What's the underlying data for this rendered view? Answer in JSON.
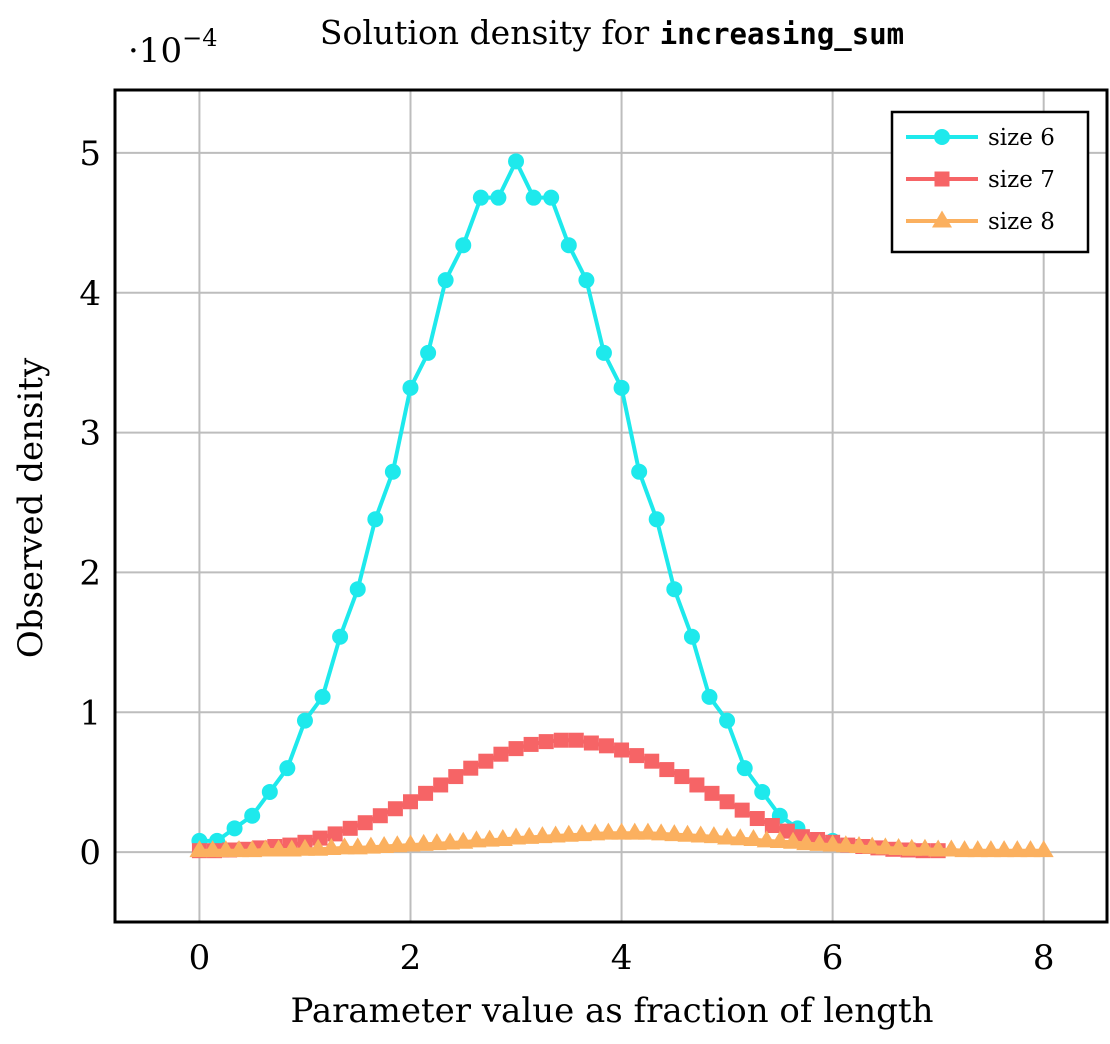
{
  "chart_data": {
    "type": "line",
    "title_prefix": "Solution density for ",
    "title_code": "increasing_sum",
    "xlabel": "Parameter value as fraction of length",
    "ylabel": "Observed density",
    "y_multiplier": "·10",
    "y_multiplier_exp": "−4",
    "xlim": [
      -0.8,
      8.6
    ],
    "ylim": [
      -0.5,
      5.45
    ],
    "x_ticks": [
      0,
      2,
      4,
      6,
      8
    ],
    "y_ticks": [
      0,
      1,
      2,
      3,
      4,
      5
    ],
    "grid": true,
    "legend_position": "top-right",
    "series": [
      {
        "name": "size 6",
        "color": "#1ee9ec",
        "marker": "circle",
        "x": [
          0,
          0.167,
          0.333,
          0.5,
          0.667,
          0.833,
          1.0,
          1.167,
          1.333,
          1.5,
          1.667,
          1.833,
          2.0,
          2.167,
          2.333,
          2.5,
          2.667,
          2.833,
          3.0,
          3.167,
          3.333,
          3.5,
          3.667,
          3.833,
          4.0,
          4.167,
          4.333,
          4.5,
          4.667,
          4.833,
          5.0,
          5.167,
          5.333,
          5.5,
          5.667,
          5.833,
          6.0
        ],
        "y": [
          0.08,
          0.08,
          0.17,
          0.26,
          0.43,
          0.6,
          0.94,
          1.11,
          1.54,
          1.88,
          2.38,
          2.72,
          3.32,
          3.57,
          4.09,
          4.34,
          4.68,
          4.68,
          4.94,
          4.68,
          4.68,
          4.34,
          4.09,
          3.57,
          3.32,
          2.72,
          2.38,
          1.88,
          1.54,
          1.11,
          0.94,
          0.6,
          0.43,
          0.26,
          0.17,
          0.08,
          0.08
        ]
      },
      {
        "name": "size 7",
        "color": "#f66466",
        "marker": "square",
        "x": [
          0,
          0.143,
          0.286,
          0.429,
          0.571,
          0.714,
          0.857,
          1.0,
          1.143,
          1.286,
          1.429,
          1.571,
          1.714,
          1.857,
          2.0,
          2.143,
          2.286,
          2.429,
          2.571,
          2.714,
          2.857,
          3.0,
          3.143,
          3.286,
          3.429,
          3.571,
          3.714,
          3.857,
          4.0,
          4.143,
          4.286,
          4.429,
          4.571,
          4.714,
          4.857,
          5.0,
          5.143,
          5.286,
          5.429,
          5.571,
          5.714,
          5.857,
          6.0,
          6.143,
          6.286,
          6.429,
          6.571,
          6.714,
          6.857,
          7.0
        ],
        "y": [
          0.01,
          0.01,
          0.015,
          0.02,
          0.03,
          0.04,
          0.05,
          0.07,
          0.1,
          0.13,
          0.17,
          0.21,
          0.26,
          0.31,
          0.36,
          0.42,
          0.48,
          0.54,
          0.6,
          0.65,
          0.7,
          0.74,
          0.77,
          0.79,
          0.8,
          0.8,
          0.78,
          0.76,
          0.73,
          0.69,
          0.65,
          0.59,
          0.54,
          0.48,
          0.42,
          0.36,
          0.3,
          0.24,
          0.19,
          0.15,
          0.11,
          0.09,
          0.07,
          0.05,
          0.04,
          0.03,
          0.02,
          0.015,
          0.01,
          0.01
        ]
      },
      {
        "name": "size 8",
        "color": "#fbb05f",
        "marker": "triangle",
        "x": [
          0,
          0.125,
          0.25,
          0.375,
          0.5,
          0.625,
          0.75,
          0.875,
          1.0,
          1.125,
          1.25,
          1.375,
          1.5,
          1.625,
          1.75,
          1.875,
          2.0,
          2.125,
          2.25,
          2.375,
          2.5,
          2.625,
          2.75,
          2.875,
          3.0,
          3.125,
          3.25,
          3.375,
          3.5,
          3.625,
          3.75,
          3.875,
          4.0,
          4.125,
          4.25,
          4.375,
          4.5,
          4.625,
          4.75,
          4.875,
          5.0,
          5.125,
          5.25,
          5.375,
          5.5,
          5.625,
          5.75,
          5.875,
          6.0,
          6.125,
          6.25,
          6.375,
          6.5,
          6.625,
          6.75,
          6.875,
          7.0,
          7.125,
          7.25,
          7.375,
          7.5,
          7.625,
          7.75,
          7.875,
          8.0
        ],
        "y": [
          0.01,
          0.01,
          0.01,
          0.01,
          0.01,
          0.015,
          0.015,
          0.015,
          0.02,
          0.02,
          0.025,
          0.03,
          0.03,
          0.035,
          0.04,
          0.045,
          0.05,
          0.055,
          0.06,
          0.065,
          0.07,
          0.08,
          0.085,
          0.09,
          0.1,
          0.105,
          0.11,
          0.115,
          0.12,
          0.125,
          0.13,
          0.135,
          0.135,
          0.135,
          0.135,
          0.13,
          0.125,
          0.12,
          0.115,
          0.11,
          0.1,
          0.095,
          0.09,
          0.08,
          0.075,
          0.07,
          0.06,
          0.055,
          0.05,
          0.045,
          0.04,
          0.035,
          0.03,
          0.025,
          0.02,
          0.02,
          0.015,
          0.015,
          0.01,
          0.01,
          0.01,
          0.01,
          0.01,
          0.01,
          0.01
        ]
      }
    ]
  }
}
